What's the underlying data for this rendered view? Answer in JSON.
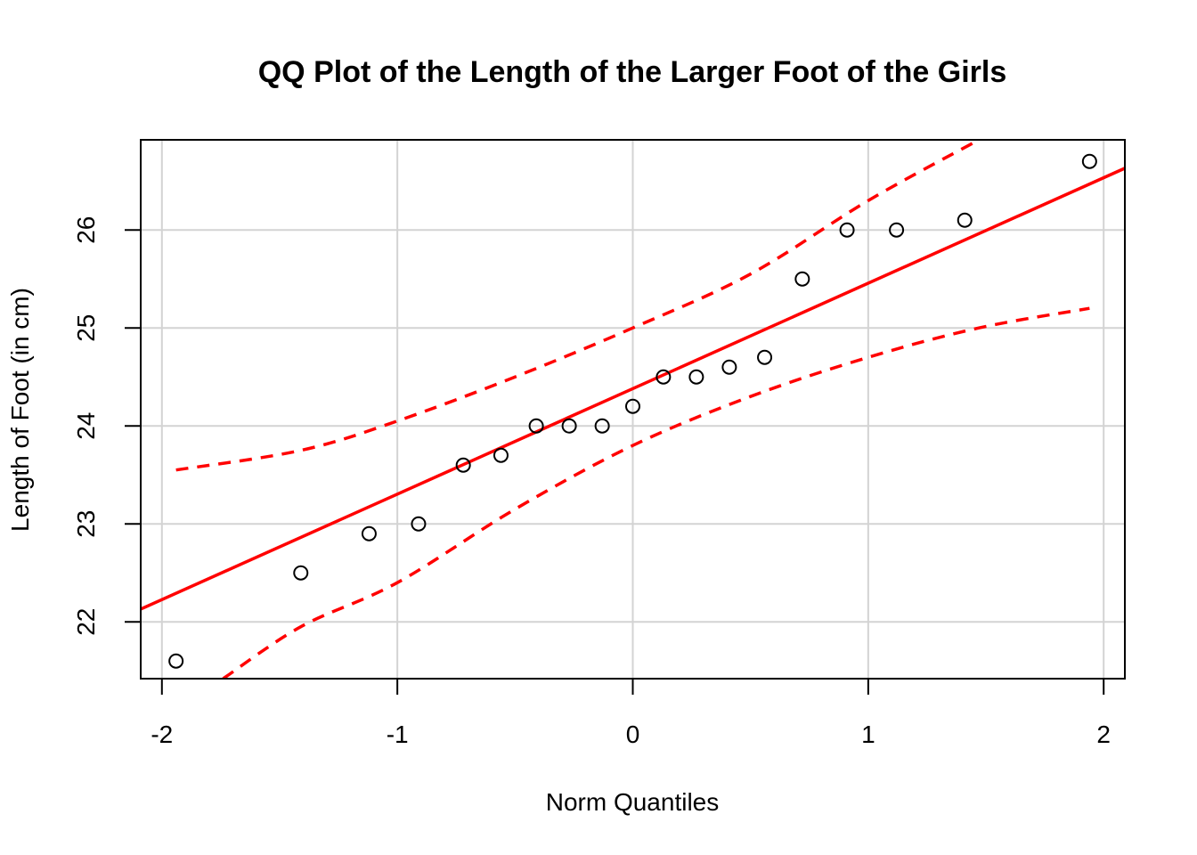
{
  "chart_data": {
    "type": "scatter",
    "title": "QQ Plot of the Length of the Larger Foot of the Girls",
    "xlabel": "Norm Quantiles",
    "ylabel": "Length of Foot (in cm)",
    "xlim": [
      -2.09,
      2.09
    ],
    "ylim": [
      21.42,
      26.92
    ],
    "x_ticks": [
      -2,
      -1,
      0,
      1,
      2
    ],
    "x_tick_labels": [
      "-2",
      "-1",
      "0",
      "1",
      "2"
    ],
    "y_ticks": [
      22,
      23,
      24,
      25,
      26
    ],
    "y_tick_labels": [
      "22",
      "23",
      "24",
      "25",
      "26"
    ],
    "grid": true,
    "points": {
      "x": [
        -1.94,
        -1.41,
        -1.12,
        -0.91,
        -0.72,
        -0.56,
        -0.41,
        -0.27,
        -0.13,
        0.0,
        0.13,
        0.27,
        0.41,
        0.56,
        0.72,
        0.91,
        1.12,
        1.41,
        1.94
      ],
      "y": [
        21.6,
        22.5,
        22.9,
        23.0,
        23.6,
        23.7,
        24.0,
        24.0,
        24.0,
        24.2,
        24.5,
        24.5,
        24.6,
        24.7,
        25.5,
        26.0,
        26.0,
        26.1,
        26.7
      ]
    },
    "reference_line": {
      "color": "#ff0000",
      "style": "solid",
      "x": [
        -2.09,
        2.09
      ],
      "y": [
        22.13,
        26.63
      ]
    },
    "confidence_band": {
      "color": "#ff0000",
      "style": "dashed",
      "upper": {
        "x": [
          -1.94,
          -1.41,
          -1.0,
          -0.5,
          0.0,
          0.5,
          1.0,
          1.47
        ],
        "y": [
          23.55,
          23.75,
          24.05,
          24.5,
          25.0,
          25.55,
          26.3,
          26.92
        ]
      },
      "lower": {
        "x": [
          -1.74,
          -1.41,
          -1.0,
          -0.5,
          0.0,
          0.5,
          1.0,
          1.47,
          1.94
        ],
        "y": [
          21.42,
          21.95,
          22.4,
          23.15,
          23.8,
          24.3,
          24.7,
          25.0,
          25.2
        ]
      }
    }
  }
}
